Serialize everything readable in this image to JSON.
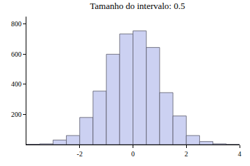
{
  "chart_data": {
    "type": "histogram",
    "title": "Tamanho do intervalo: 0.5",
    "bins": [
      -4,
      -3.5,
      -3,
      -2.5,
      -2,
      -1.5,
      -1,
      -0.5,
      0,
      0.5,
      1,
      1.5,
      2,
      2.5,
      3,
      3.5,
      4
    ],
    "values": [
      2,
      5,
      30,
      60,
      180,
      355,
      600,
      735,
      755,
      645,
      345,
      190,
      60,
      20,
      5,
      1
    ],
    "color": "#ccd1f2",
    "xlim": [
      -4,
      4
    ],
    "xticks": [
      -2,
      0,
      2,
      4
    ],
    "ylim": [
      0,
      850
    ],
    "yticks": [
      200,
      400,
      600,
      800
    ],
    "grid": false
  }
}
